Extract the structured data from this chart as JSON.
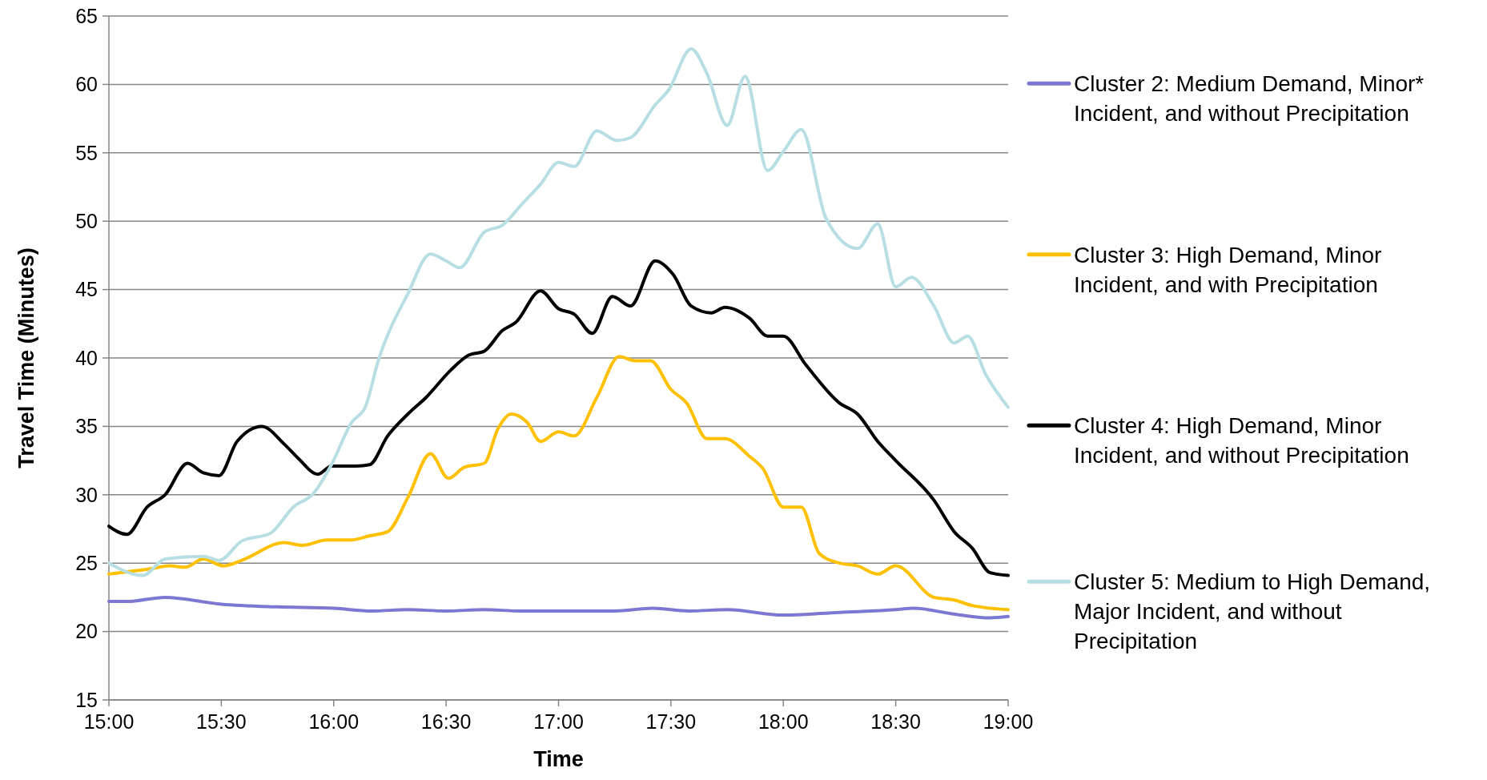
{
  "chart_data": {
    "type": "line",
    "xlabel": "Time",
    "ylabel": "Travel Time (Minutes)",
    "xlim": [
      15,
      19
    ],
    "ylim": [
      15,
      65
    ],
    "xticks": [
      {
        "value": 15,
        "label": "15:00"
      },
      {
        "value": 15.5,
        "label": "15:30"
      },
      {
        "value": 16,
        "label": "16:00"
      },
      {
        "value": 16.5,
        "label": "16:30"
      },
      {
        "value": 17,
        "label": "17:00"
      },
      {
        "value": 17.5,
        "label": "17:30"
      },
      {
        "value": 18,
        "label": "18:00"
      },
      {
        "value": 18.5,
        "label": "18:30"
      },
      {
        "value": 19,
        "label": "19:00"
      }
    ],
    "yticks": [
      15,
      20,
      25,
      30,
      35,
      40,
      45,
      50,
      55,
      60,
      65
    ],
    "grid": "y",
    "legend": "right",
    "marker": "none",
    "line_style": "solid",
    "series": [
      {
        "name": "Cluster 2: Medium Demand, Minor* Incident, and without Precipitation",
        "color": "#7b78d3",
        "x": [
          15,
          15.08,
          15.25,
          15.5,
          15.75,
          16,
          16.17,
          16.33,
          16.5,
          16.67,
          16.83,
          17,
          17.25,
          17.42,
          17.58,
          17.75,
          18,
          18.25,
          18.5,
          18.58,
          18.75,
          18.92,
          19
        ],
        "values": [
          22.2,
          22.2,
          22.5,
          22.0,
          21.8,
          21.7,
          21.5,
          21.6,
          21.5,
          21.6,
          21.5,
          21.5,
          21.5,
          21.7,
          21.5,
          21.6,
          21.2,
          21.4,
          21.6,
          21.7,
          21.3,
          21.0,
          21.1
        ]
      },
      {
        "name": "Cluster 3: High Demand, Minor Incident, and with Precipitation",
        "color": "#ffc000",
        "x": [
          15,
          15.19,
          15.27,
          15.34,
          15.42,
          15.51,
          15.59,
          15.78,
          15.86,
          15.97,
          16.08,
          16.16,
          16.24,
          16.33,
          16.43,
          16.51,
          16.58,
          16.67,
          16.73,
          16.79,
          16.86,
          16.92,
          17,
          17.07,
          17.17,
          17.27,
          17.34,
          17.41,
          17.5,
          17.57,
          17.66,
          17.74,
          17.85,
          17.91,
          18,
          18.08,
          18.16,
          18.25,
          18.33,
          18.42,
          18.5,
          18.67,
          18.76,
          18.84,
          19
        ],
        "values": [
          24.2,
          24.6,
          24.8,
          24.7,
          25.3,
          24.8,
          25.2,
          26.5,
          26.3,
          26.7,
          26.7,
          27.0,
          27.3,
          29.8,
          33.0,
          31.2,
          32.0,
          32.3,
          34.8,
          35.9,
          35.3,
          33.9,
          34.6,
          34.3,
          37.1,
          40.1,
          39.8,
          39.8,
          37.7,
          36.7,
          34.1,
          34.1,
          32.8,
          31.9,
          29.1,
          29.1,
          25.7,
          25.0,
          24.8,
          24.2,
          24.8,
          22.5,
          22.3,
          21.9,
          21.6
        ]
      },
      {
        "name": "Cluster 4: High Demand, Minor Incident, and without Precipitation",
        "color": "#000000",
        "x": [
          15,
          15.08,
          15.17,
          15.25,
          15.35,
          15.42,
          15.49,
          15.57,
          15.68,
          15.78,
          15.84,
          15.93,
          15.99,
          16.1,
          16.16,
          16.24,
          16.33,
          16.41,
          16.52,
          16.6,
          16.67,
          16.75,
          16.81,
          16.92,
          17,
          17.07,
          17.15,
          17.24,
          17.32,
          17.43,
          17.51,
          17.59,
          17.68,
          17.74,
          17.85,
          17.93,
          18,
          18.1,
          18.25,
          18.33,
          18.42,
          18.5,
          18.67,
          18.76,
          18.84,
          18.92,
          19
        ],
        "values": [
          27.7,
          27.1,
          29.1,
          30.0,
          32.3,
          31.6,
          31.4,
          33.9,
          35.0,
          33.7,
          32.7,
          31.5,
          32.1,
          32.1,
          32.2,
          34.3,
          35.9,
          37.1,
          39.1,
          40.2,
          40.5,
          42.0,
          42.6,
          44.9,
          43.6,
          43.2,
          41.8,
          44.5,
          43.8,
          47.1,
          46.1,
          43.8,
          43.3,
          43.7,
          42.9,
          41.6,
          41.6,
          39.5,
          36.7,
          35.9,
          33.9,
          32.5,
          29.6,
          27.3,
          26.1,
          24.3,
          24.1
        ]
      },
      {
        "name": "Cluster 5: Medium to High Demand, Major Incident, and without Precipitation",
        "color": "#b7dfe3",
        "x": [
          15,
          15.15,
          15.25,
          15.42,
          15.49,
          15.59,
          15.72,
          15.82,
          15.91,
          15.99,
          16.08,
          16.14,
          16.2,
          16.33,
          16.43,
          16.5,
          16.56,
          16.67,
          16.75,
          16.84,
          16.92,
          17,
          17.07,
          17.17,
          17.26,
          17.32,
          17.43,
          17.49,
          17.59,
          17.66,
          17.75,
          17.83,
          17.93,
          18,
          18.08,
          18.19,
          18.33,
          18.42,
          18.5,
          18.57,
          18.67,
          18.76,
          18.82,
          18.9,
          19
        ],
        "values": [
          25.0,
          24.1,
          25.3,
          25.5,
          25.2,
          26.6,
          27.2,
          29.1,
          30.1,
          32.2,
          35.3,
          36.4,
          39.9,
          44.7,
          47.6,
          47.1,
          46.6,
          49.2,
          49.7,
          51.3,
          52.7,
          54.3,
          54.0,
          56.6,
          55.9,
          56.1,
          58.5,
          59.6,
          62.6,
          60.8,
          57.0,
          60.6,
          53.7,
          55.1,
          56.7,
          50.2,
          48.0,
          49.8,
          45.2,
          45.9,
          43.8,
          41.1,
          41.6,
          38.8,
          36.4
        ]
      }
    ]
  }
}
